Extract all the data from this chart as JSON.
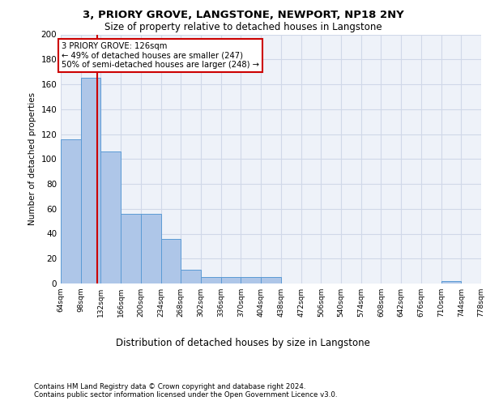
{
  "title_line1": "3, PRIORY GROVE, LANGSTONE, NEWPORT, NP18 2NY",
  "title_line2": "Size of property relative to detached houses in Langstone",
  "xlabel": "Distribution of detached houses by size in Langstone",
  "ylabel": "Number of detached properties",
  "bar_edges": [
    64,
    98,
    132,
    166,
    200,
    234,
    268,
    302,
    336,
    370,
    404,
    438,
    472,
    506,
    540,
    574,
    608,
    642,
    676,
    710,
    744
  ],
  "bar_heights": [
    116,
    165,
    106,
    56,
    56,
    36,
    11,
    5,
    5,
    5,
    5,
    0,
    0,
    0,
    0,
    0,
    0,
    0,
    0,
    2,
    0
  ],
  "bar_color": "#aec6e8",
  "bar_edge_color": "#5b9bd5",
  "grid_color": "#d0d8e8",
  "bg_color": "#eef2f9",
  "property_line_x": 126,
  "property_line_color": "#cc0000",
  "annotation_text": "3 PRIORY GROVE: 126sqm\n← 49% of detached houses are smaller (247)\n50% of semi-detached houses are larger (248) →",
  "annotation_box_color": "#cc0000",
  "ylim": [
    0,
    200
  ],
  "footnote1": "Contains HM Land Registry data © Crown copyright and database right 2024.",
  "footnote2": "Contains public sector information licensed under the Open Government Licence v3.0."
}
